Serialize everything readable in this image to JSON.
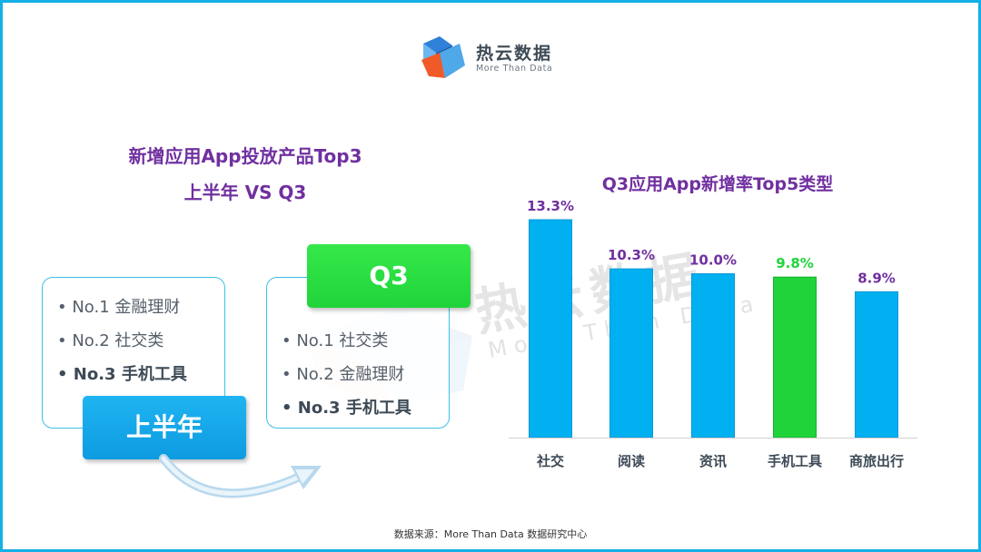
{
  "logo": {
    "name": "热云数据",
    "tagline": "More Than Data"
  },
  "watermark": {
    "name": "热云数据",
    "tagline": "More Than Data"
  },
  "left_panel": {
    "title_line1": "新增应用App投放产品Top3",
    "title_line2": "上半年 VS Q3",
    "h1_box": {
      "tag": "上半年",
      "items": [
        "No.1 金融理财",
        "No.2 社交类",
        "No.3 手机工具"
      ]
    },
    "q3_box": {
      "tag": "Q3",
      "items": [
        "No.1 社交类",
        "No.2 金融理财",
        "No.3 手机工具"
      ]
    }
  },
  "colors": {
    "accent_purple": "#7030a0",
    "bar_blue": "#00b0f0",
    "bar_green": "#1fd43a",
    "frame": "#14b0e6"
  },
  "chart_data": {
    "type": "bar",
    "title": "Q3应用App新增率Top5类型",
    "categories": [
      "社交",
      "阅读",
      "资讯",
      "手机工具",
      "商旅出行"
    ],
    "values": [
      13.3,
      10.3,
      10.0,
      9.8,
      8.9
    ],
    "labels": [
      "13.3%",
      "10.3%",
      "10.0%",
      "9.8%",
      "8.9%"
    ],
    "highlight_index": 3,
    "value_color_highlight": "#1fd43a",
    "grid": false,
    "ylim": [
      0,
      13.3
    ]
  },
  "source": "数据来源：More Than Data 数据研究中心"
}
